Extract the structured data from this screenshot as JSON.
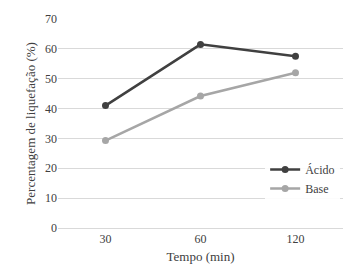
{
  "chart_data": {
    "type": "line",
    "xlabel": "Tempo (min)",
    "ylabel": "Percentagem de liquefação (%)",
    "categories": [
      "30",
      "60",
      "120"
    ],
    "series": [
      {
        "name": "Ácido",
        "color": "#404040",
        "values": [
          41,
          61.5,
          57.5
        ]
      },
      {
        "name": "Base",
        "color": "#a6a6a6",
        "values": [
          29.3,
          44.2,
          52
        ]
      }
    ],
    "ylim": [
      0,
      70
    ],
    "yticks": [
      0,
      10,
      20,
      30,
      40,
      50,
      60,
      70
    ],
    "grid": true,
    "legend": "lower right",
    "marker": "circle"
  }
}
